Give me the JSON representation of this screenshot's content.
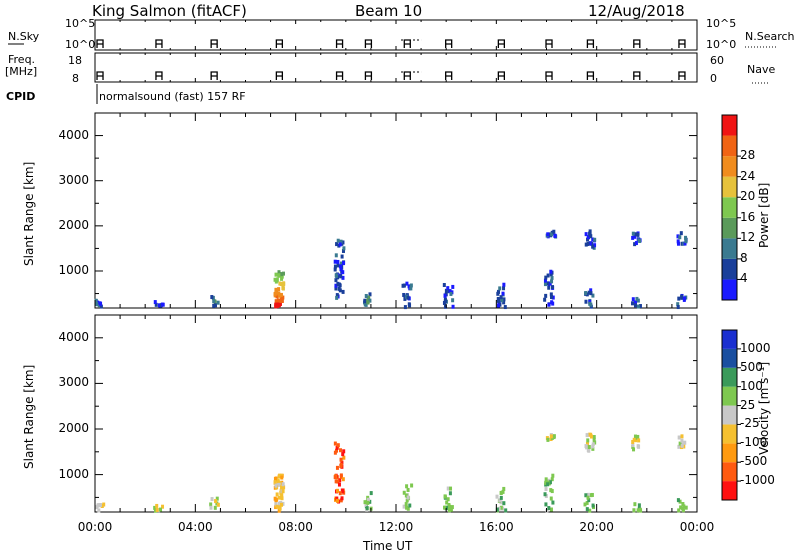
{
  "header": {
    "radar": "King Salmon (fitACF)",
    "beam": "Beam 10",
    "date": "12/Aug/2018"
  },
  "aux_panels": {
    "nsky_label": "N.Sky",
    "nsky_ticks": [
      "10^5",
      "10^0"
    ],
    "nsearch_label": "N.Search",
    "nsearch_ticks": [
      "10^5",
      "10^0"
    ],
    "freq_label_1": "Freq.",
    "freq_label_2": "[MHz]",
    "freq_ticks": [
      "18",
      "8"
    ],
    "nave_label": "Nave",
    "nave_ticks": [
      "60",
      "0"
    ],
    "cpid_label": "CPID",
    "cpid_text": "normalsound (fast) 157 RF"
  },
  "colors": {
    "power_scale": [
      "#1a1aff",
      "#1a3f9a",
      "#3a7a90",
      "#5a9a5a",
      "#7ec850",
      "#e6c23c",
      "#f08c1e",
      "#f06414",
      "#f01414"
    ],
    "velocity_scale": [
      "#ff1010",
      "#ff5a10",
      "#ff9a10",
      "#f5c030",
      "#c8c8c8",
      "#7ec850",
      "#3a9a5a",
      "#1a4fa0",
      "#1a2fd0"
    ]
  },
  "chart_data": [
    {
      "type": "heatmap",
      "name": "power",
      "xlabel": "",
      "ylabel": "Slant Range [km]",
      "ylim": [
        180,
        4500
      ],
      "y_ticks": [
        "1000",
        "2000",
        "3000",
        "4000"
      ],
      "colorbar_label": "Power [dB]",
      "colorbar_ticks": [
        "4",
        "8",
        "12",
        "16",
        "20",
        "24",
        "28"
      ],
      "clusters": [
        {
          "t": 0.2,
          "r0": 200,
          "r1": 350,
          "dens": 0.5,
          "c": 1
        },
        {
          "t": 2.55,
          "r0": 200,
          "r1": 320,
          "dens": 0.4,
          "c": 1
        },
        {
          "t": 4.75,
          "r0": 200,
          "r1": 500,
          "dens": 0.2,
          "c": 2
        },
        {
          "t": 7.35,
          "r0": 200,
          "r1": 1000,
          "dens": 0.9,
          "c": 5
        },
        {
          "t": 9.75,
          "r0": 400,
          "r1": 1700,
          "dens": 0.5,
          "c": 1
        },
        {
          "t": 10.9,
          "r0": 200,
          "r1": 600,
          "dens": 0.3,
          "c": 2
        },
        {
          "t": 12.45,
          "r0": 200,
          "r1": 800,
          "dens": 0.35,
          "c": 1
        },
        {
          "t": 14.1,
          "r0": 200,
          "r1": 700,
          "dens": 0.45,
          "c": 1
        },
        {
          "t": 16.2,
          "r0": 200,
          "r1": 700,
          "dens": 0.45,
          "c": 1
        },
        {
          "t": 18.1,
          "r0": 200,
          "r1": 1000,
          "dens": 0.4,
          "c": 1
        },
        {
          "t": 18.2,
          "r0": 1750,
          "r1": 1900,
          "dens": 0.7,
          "c": 1
        },
        {
          "t": 19.7,
          "r0": 200,
          "r1": 600,
          "dens": 0.35,
          "c": 1
        },
        {
          "t": 19.75,
          "r0": 1500,
          "r1": 1900,
          "dens": 0.6,
          "c": 1
        },
        {
          "t": 21.6,
          "r0": 200,
          "r1": 400,
          "dens": 0.35,
          "c": 1
        },
        {
          "t": 21.6,
          "r0": 1550,
          "r1": 1850,
          "dens": 0.45,
          "c": 1
        },
        {
          "t": 23.4,
          "r0": 200,
          "r1": 450,
          "dens": 0.35,
          "c": 1
        },
        {
          "t": 23.4,
          "r0": 1600,
          "r1": 1850,
          "dens": 0.5,
          "c": 1
        }
      ]
    },
    {
      "type": "heatmap",
      "name": "velocity",
      "xlabel": "Time UT",
      "ylabel": "Slant Range [km]",
      "ylim": [
        180,
        4500
      ],
      "y_ticks": [
        "1000",
        "2000",
        "3000",
        "4000"
      ],
      "x_ticks": [
        "00:00",
        "04:00",
        "08:00",
        "12:00",
        "16:00",
        "20:00",
        "00:00"
      ],
      "colorbar_label": "Velocity [m s⁻¹]",
      "colorbar_ticks": [
        "-1000",
        "-500",
        "-100",
        "-25",
        "25",
        "100",
        "500",
        "1000"
      ],
      "clusters": [
        {
          "t": 0.2,
          "r0": 200,
          "r1": 350,
          "dens": 0.4,
          "c": 4
        },
        {
          "t": 2.55,
          "r0": 200,
          "r1": 320,
          "dens": 0.35,
          "c": 4
        },
        {
          "t": 4.75,
          "r0": 200,
          "r1": 500,
          "dens": 0.2,
          "c": 4
        },
        {
          "t": 7.35,
          "r0": 200,
          "r1": 1000,
          "dens": 0.9,
          "c": 3
        },
        {
          "t": 9.75,
          "r0": 400,
          "r1": 1700,
          "dens": 0.45,
          "c": 1
        },
        {
          "t": 10.9,
          "r0": 200,
          "r1": 600,
          "dens": 0.3,
          "c": 5
        },
        {
          "t": 12.45,
          "r0": 200,
          "r1": 800,
          "dens": 0.3,
          "c": 5
        },
        {
          "t": 14.1,
          "r0": 200,
          "r1": 700,
          "dens": 0.4,
          "c": 5
        },
        {
          "t": 16.2,
          "r0": 200,
          "r1": 700,
          "dens": 0.4,
          "c": 5
        },
        {
          "t": 18.1,
          "r0": 200,
          "r1": 1000,
          "dens": 0.35,
          "c": 5
        },
        {
          "t": 18.2,
          "r0": 1750,
          "r1": 1900,
          "dens": 0.6,
          "c": 4
        },
        {
          "t": 19.7,
          "r0": 200,
          "r1": 600,
          "dens": 0.3,
          "c": 5
        },
        {
          "t": 19.75,
          "r0": 1500,
          "r1": 1900,
          "dens": 0.5,
          "c": 4
        },
        {
          "t": 21.6,
          "r0": 200,
          "r1": 400,
          "dens": 0.3,
          "c": 5
        },
        {
          "t": 21.6,
          "r0": 1550,
          "r1": 1850,
          "dens": 0.4,
          "c": 4
        },
        {
          "t": 23.4,
          "r0": 200,
          "r1": 450,
          "dens": 0.3,
          "c": 5
        },
        {
          "t": 23.4,
          "r0": 1600,
          "r1": 1850,
          "dens": 0.4,
          "c": 4
        }
      ]
    }
  ]
}
